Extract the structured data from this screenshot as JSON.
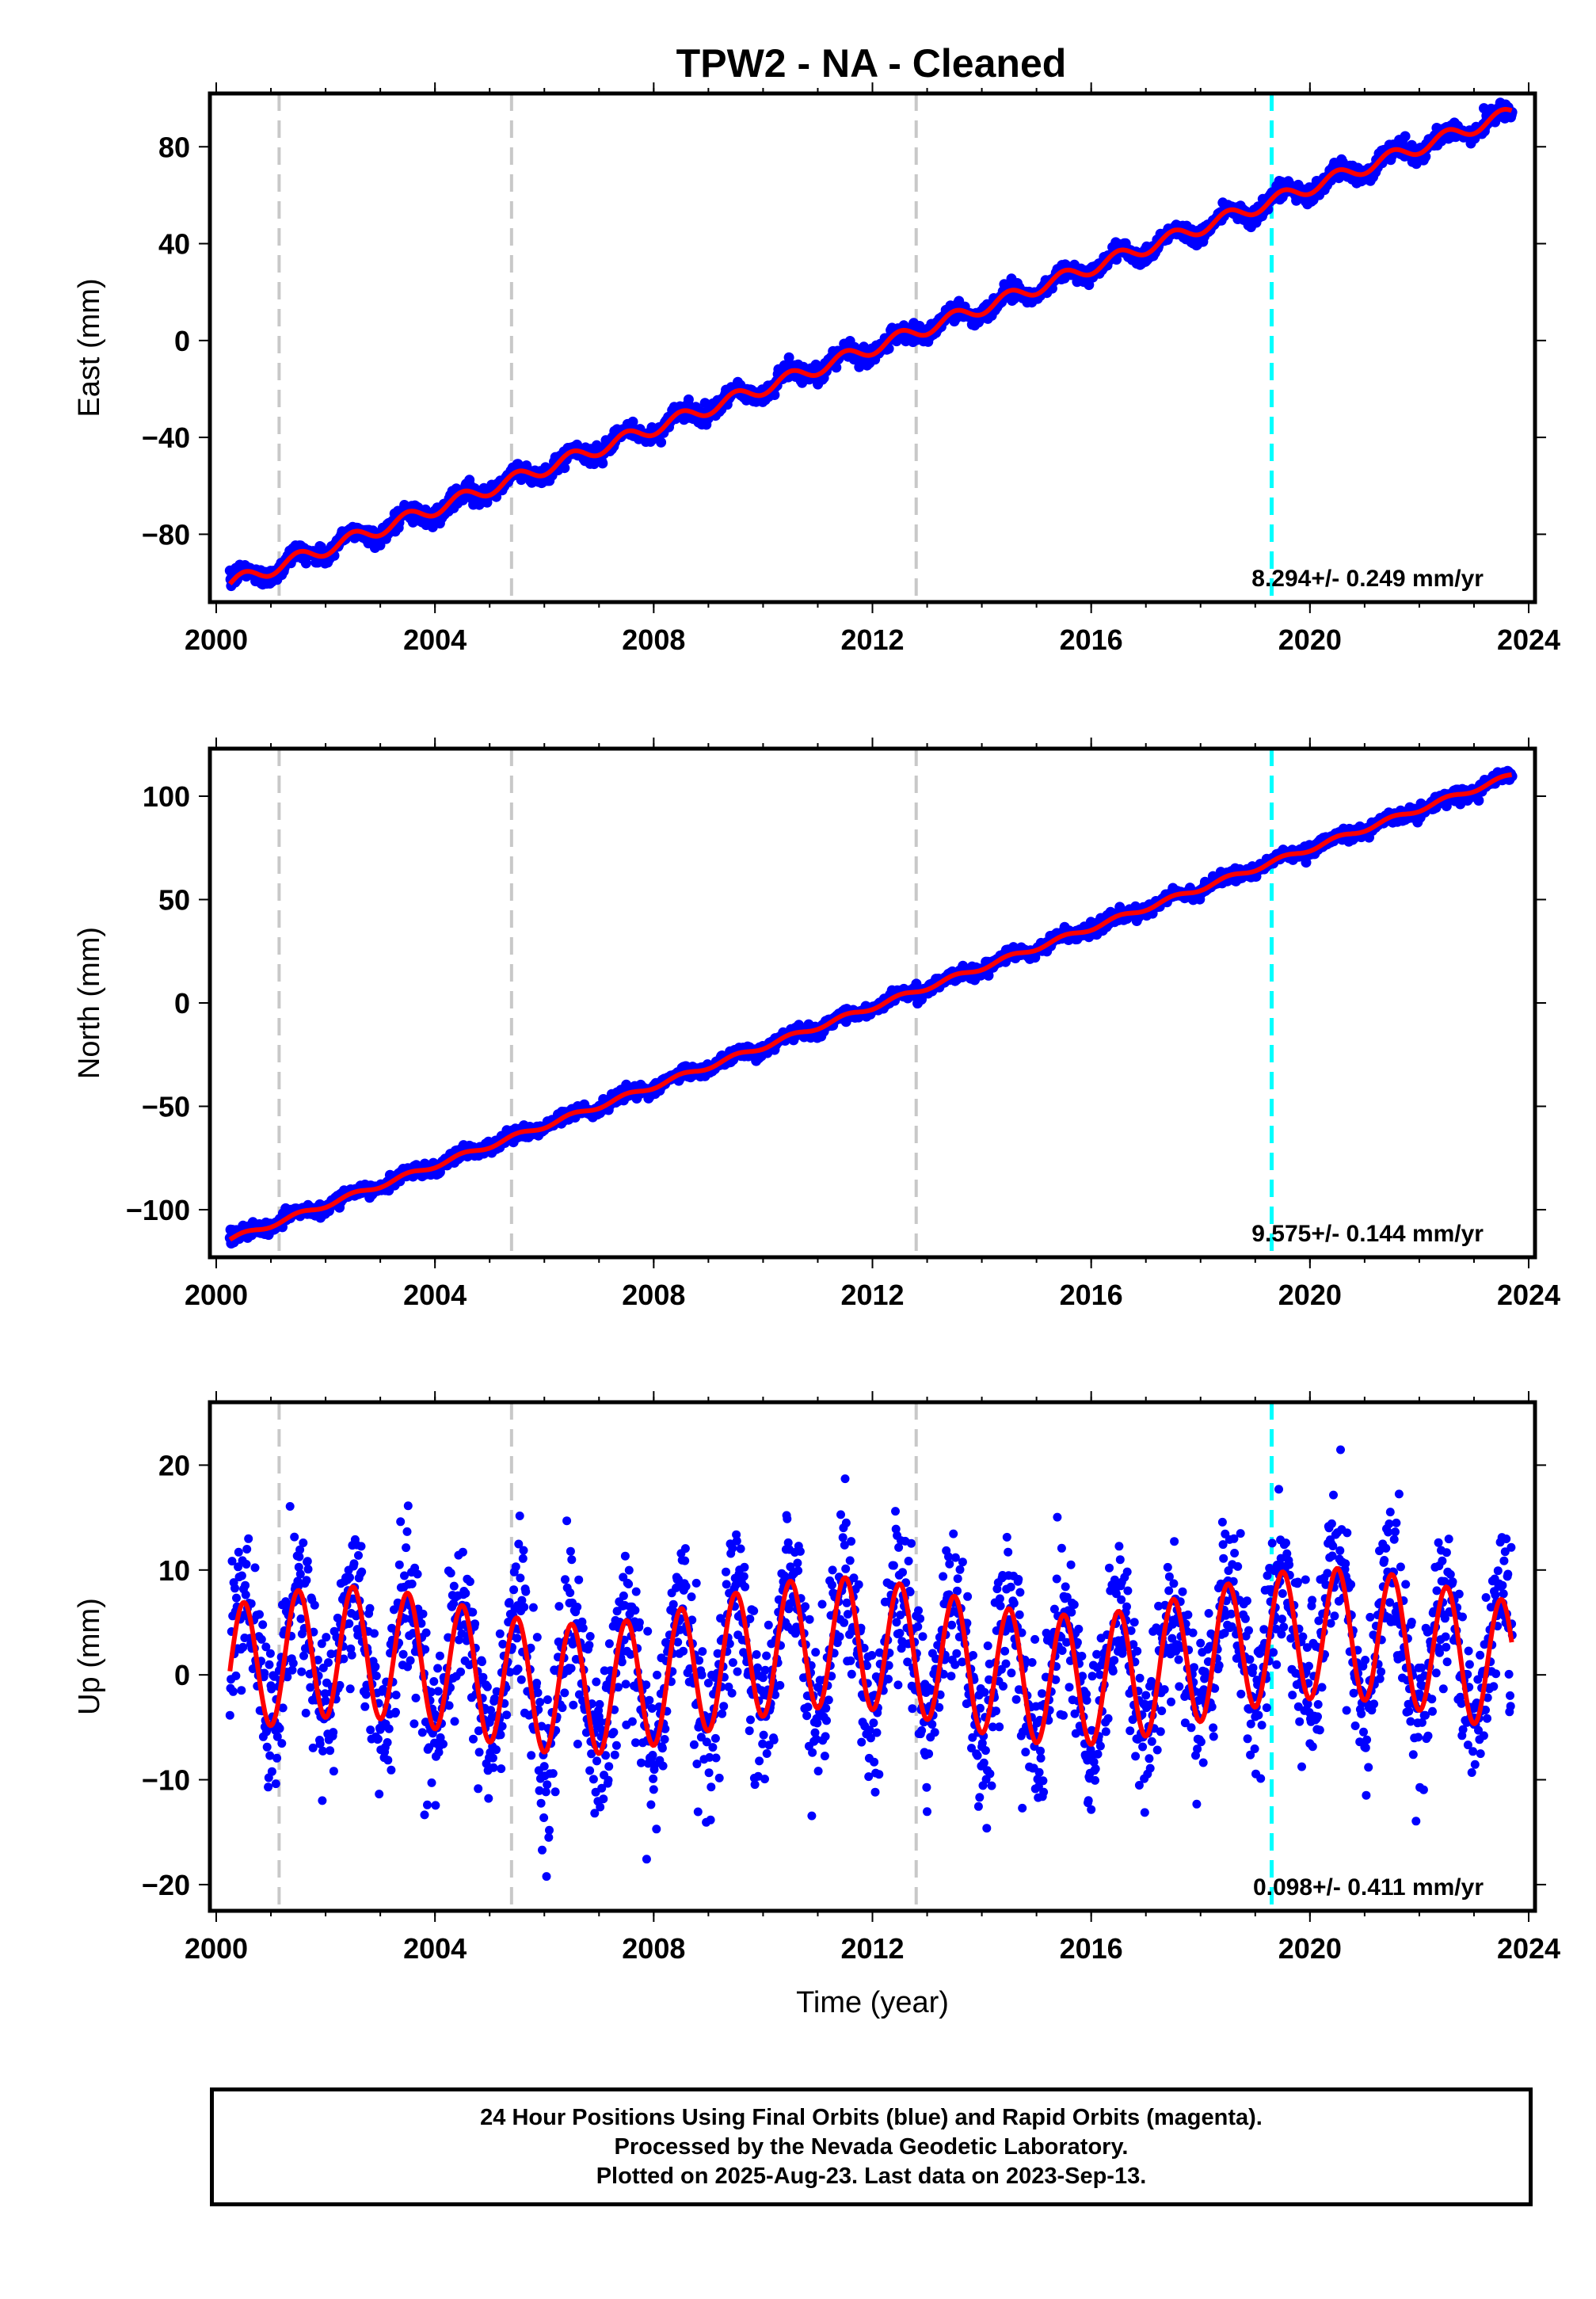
{
  "title": "TPW2  - NA - Cleaned",
  "colors": {
    "observations": "#0000ff",
    "model": "#ff0000",
    "equipment_change": "#c8c8c8",
    "earthquake": "#00ffff",
    "frame": "#000000"
  },
  "chart_data": [
    {
      "type": "scatter",
      "component": "East",
      "ylabel": "East (mm)",
      "xlabel": "",
      "xlim": [
        2000.0,
        2024.0
      ],
      "ylim": [
        -108,
        102
      ],
      "xticks": [
        2000,
        2004,
        2008,
        2012,
        2016,
        2020,
        2024
      ],
      "yticks": [
        -80,
        -40,
        0,
        40,
        80
      ],
      "rate_text": "8.294+/- 0.249 mm/yr",
      "rate_mm_per_yr": 8.294,
      "rate_sigma": 0.249,
      "model_anchor": {
        "year": 2000.25,
        "value": -100.5
      },
      "seasonal_amplitude": 2.8,
      "noise": 1.8,
      "data_span": [
        2000.25,
        2023.7
      ],
      "equipment_change_years": [
        2001.15,
        2005.4,
        2012.8
      ],
      "earthquake_years": [
        2019.3
      ],
      "series": [
        {
          "name": "observations",
          "marker": "dot"
        },
        {
          "name": "model",
          "marker": "line"
        }
      ]
    },
    {
      "type": "scatter",
      "component": "North",
      "ylabel": "North (mm)",
      "xlabel": "",
      "xlim": [
        2000.0,
        2024.0
      ],
      "ylim": [
        -123,
        123
      ],
      "xticks": [
        2000,
        2004,
        2008,
        2012,
        2016,
        2020,
        2024
      ],
      "yticks": [
        -100,
        -50,
        0,
        50,
        100
      ],
      "rate_text": "9.575+/- 0.144 mm/yr",
      "rate_mm_per_yr": 9.575,
      "rate_sigma": 0.144,
      "model_anchor": {
        "year": 2000.25,
        "value": -114.5
      },
      "seasonal_amplitude": 1.2,
      "noise": 1.5,
      "data_span": [
        2000.25,
        2023.7
      ],
      "equipment_change_years": [
        2001.15,
        2005.4,
        2012.8
      ],
      "earthquake_years": [
        2019.3
      ],
      "series": [
        {
          "name": "observations",
          "marker": "dot"
        },
        {
          "name": "model",
          "marker": "line"
        }
      ]
    },
    {
      "type": "scatter",
      "component": "Up",
      "ylabel": "Up (mm)",
      "xlabel": "Time (year)",
      "xlim": [
        2000.0,
        2024.0
      ],
      "ylim": [
        -22.5,
        26
      ],
      "xticks": [
        2000,
        2004,
        2008,
        2012,
        2016,
        2020,
        2024
      ],
      "yticks": [
        -20,
        -10,
        0,
        10,
        20
      ],
      "rate_text": "0.098+/- 0.411 mm/yr",
      "rate_mm_per_yr": 0.098,
      "rate_sigma": 0.411,
      "model_anchor": {
        "year": 2000.25,
        "value": 0.0
      },
      "seasonal_amplitude": 6.2,
      "noise": 3.6,
      "data_span": [
        2000.25,
        2023.7
      ],
      "equipment_change_years": [
        2001.15,
        2005.4,
        2012.8
      ],
      "earthquake_years": [
        2019.3
      ],
      "series": [
        {
          "name": "observations",
          "marker": "dot"
        },
        {
          "name": "model",
          "marker": "line"
        }
      ]
    }
  ],
  "footer": {
    "line1": "24 Hour Positions Using Final Orbits (blue) and Rapid Orbits (magenta).",
    "line2": "Processed by the Nevada Geodetic Laboratory.",
    "line3": "Plotted on 2025-Aug-23. Last data on 2023-Sep-13."
  }
}
